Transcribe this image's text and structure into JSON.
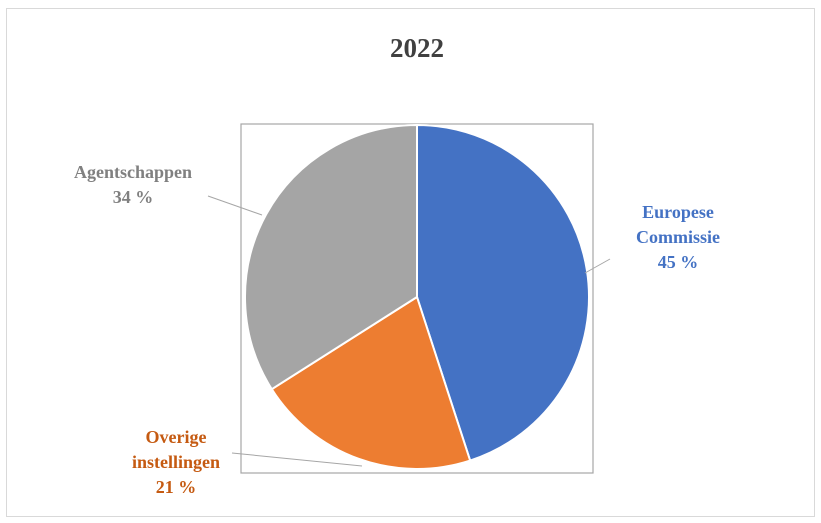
{
  "chart_data": {
    "type": "pie",
    "title": "2022",
    "slices": [
      {
        "label_lines": [
          "Europese",
          "Commissie"
        ],
        "value": 45,
        "value_label": "45 %",
        "color": "#4472C4"
      },
      {
        "label_lines": [
          "Overige",
          "instellingen"
        ],
        "value": 21,
        "value_label": "21 %",
        "color": "#ED7D31"
      },
      {
        "label_lines": [
          "Agentschappen"
        ],
        "value": 34,
        "value_label": "34 %",
        "color": "#A5A5A5"
      }
    ]
  }
}
